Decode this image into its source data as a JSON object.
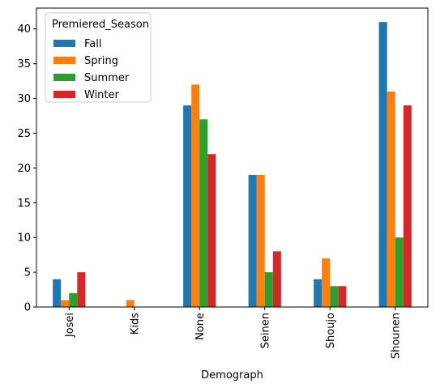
{
  "chart_data": {
    "type": "bar",
    "xlabel": "Demograph",
    "ylabel": "",
    "categories": [
      "Josei",
      "Kids",
      "None",
      "Seinen",
      "Shoujo",
      "Shounen"
    ],
    "ylim": [
      0,
      43
    ],
    "yticks": [
      0,
      5,
      10,
      15,
      20,
      25,
      30,
      35,
      40
    ],
    "grid": false,
    "legend": {
      "title": "Premiered_Season",
      "position": "top-left"
    },
    "series": [
      {
        "name": "Fall",
        "color": "#1f77b4",
        "values": [
          4,
          0,
          29,
          19,
          4,
          41
        ]
      },
      {
        "name": "Spring",
        "color": "#ff7f0e",
        "values": [
          1,
          1,
          32,
          19,
          7,
          31
        ]
      },
      {
        "name": "Summer",
        "color": "#2ca02c",
        "values": [
          2,
          0,
          27,
          5,
          3,
          10
        ]
      },
      {
        "name": "Winter",
        "color": "#d62728",
        "values": [
          5,
          0,
          22,
          8,
          3,
          29
        ]
      }
    ]
  }
}
